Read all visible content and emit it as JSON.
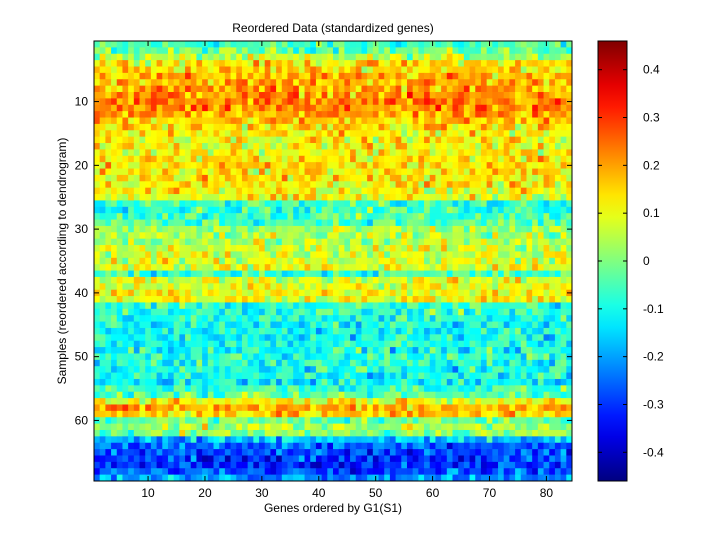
{
  "chart_data": {
    "type": "heatmap",
    "title": "Reordered Data (standardized genes)",
    "xlabel": "Genes ordered by G1(S1)",
    "ylabel": "Samples (reordered according to dendrogram)",
    "n_cols": 84,
    "n_rows": 69,
    "x_ticks": [
      10,
      20,
      30,
      40,
      50,
      60,
      70,
      80
    ],
    "y_ticks": [
      10,
      20,
      30,
      40,
      50,
      60
    ],
    "colormap": "jet",
    "color_range": [
      -0.46,
      0.46
    ],
    "colorbar_ticks": [
      0.4,
      0.3,
      0.2,
      0.1,
      0,
      -0.1,
      -0.2,
      -0.3,
      -0.4
    ],
    "row_means": [
      -0.06,
      -0.02,
      0.04,
      0.14,
      0.15,
      0.18,
      0.19,
      0.2,
      0.21,
      0.22,
      0.21,
      0.2,
      0.17,
      0.14,
      0.12,
      0.12,
      0.11,
      0.12,
      0.13,
      0.14,
      0.13,
      0.14,
      0.12,
      0.11,
      0.1,
      -0.07,
      -0.06,
      -0.05,
      -0.04,
      0.02,
      0.03,
      0.04,
      0.07,
      0.08,
      0.08,
      0.09,
      -0.06,
      0.08,
      0.09,
      0.12,
      0.11,
      -0.08,
      -0.07,
      -0.09,
      -0.1,
      -0.1,
      -0.11,
      -0.09,
      -0.1,
      -0.08,
      -0.09,
      -0.1,
      -0.1,
      -0.12,
      -0.06,
      -0.04,
      0.12,
      0.19,
      0.16,
      -0.02,
      0.04,
      0.0,
      -0.16,
      -0.25,
      -0.28,
      -0.3,
      -0.31,
      -0.26,
      -0.2
    ]
  },
  "colors": {
    "background": "#ffffff",
    "axis": "#000000"
  }
}
